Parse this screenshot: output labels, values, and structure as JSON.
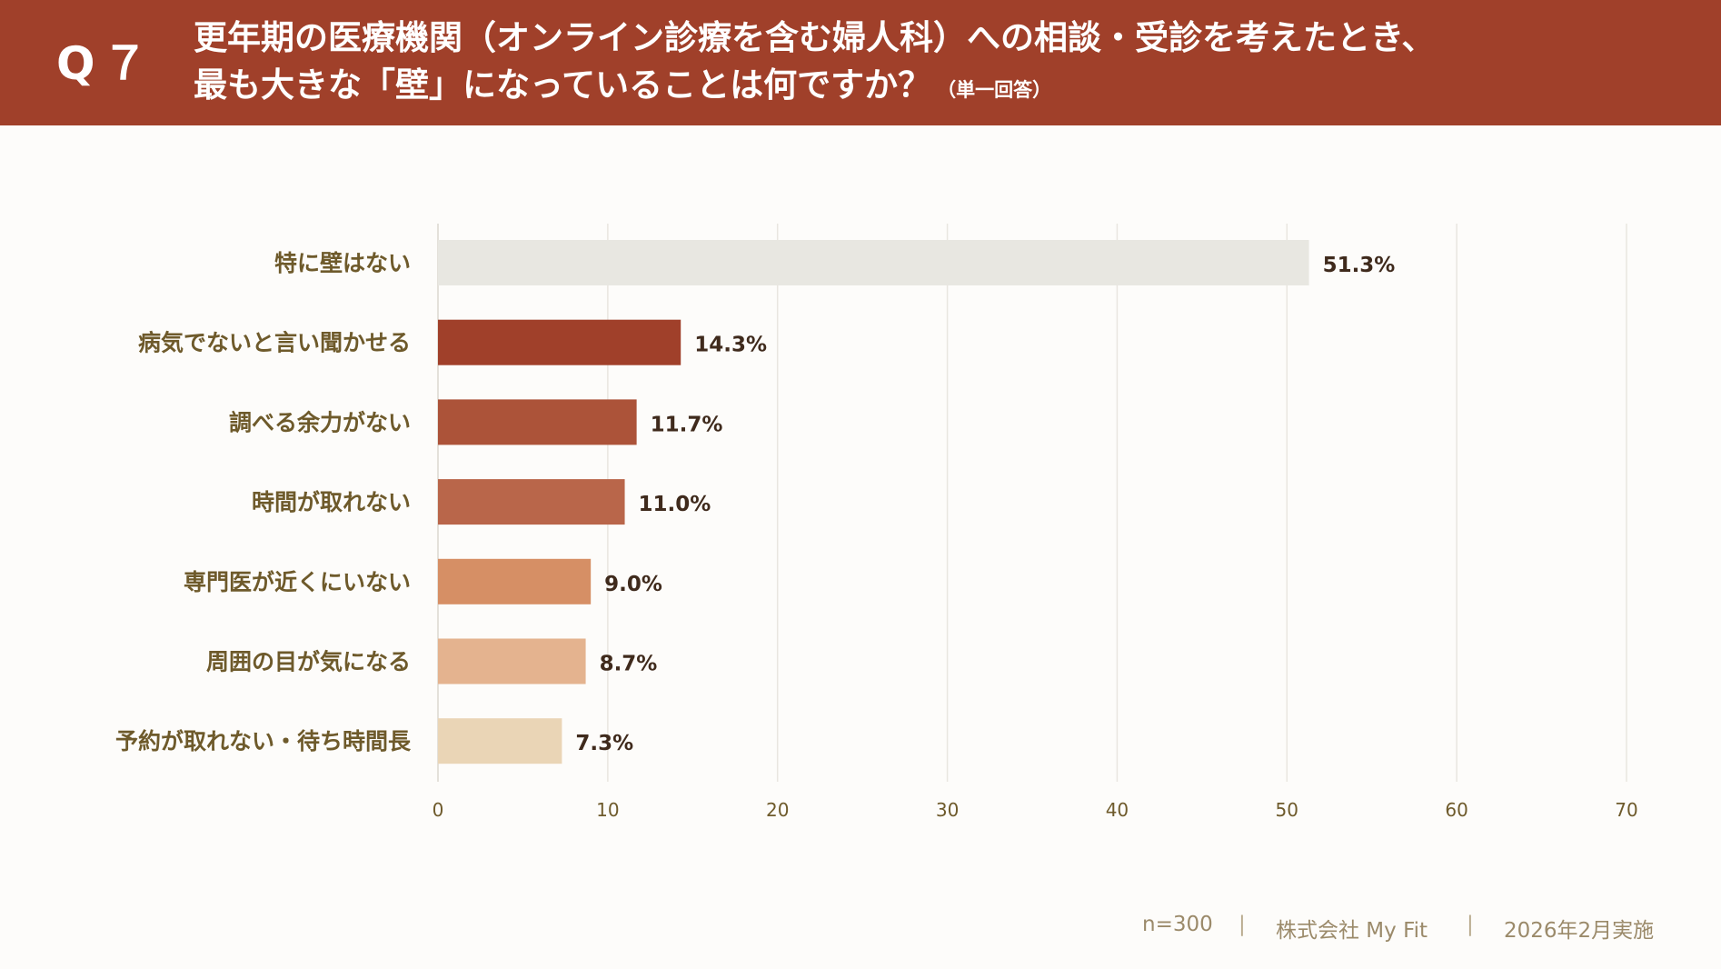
{
  "header": {
    "qnum": "Q７",
    "question_line1": "更年期の医療機関（オンライン診療を含む婦人科）への相談・受診を考えたとき、",
    "question_line2": "最も大きな「壁」になっていることは何ですか？",
    "question_note": "（単一回答）"
  },
  "chart_data": {
    "type": "bar",
    "orientation": "horizontal",
    "categories": [
      "特に壁はない",
      "病気でないと言い聞かせる",
      "調べる余力がない",
      "時間が取れない",
      "専門医が近くにいない",
      "周囲の目が気になる",
      "予約が取れない・待ち時間長"
    ],
    "values": [
      51.3,
      14.3,
      11.7,
      11.0,
      9.0,
      8.7,
      7.3
    ],
    "value_labels": [
      "51.3%",
      "14.3%",
      "11.7%",
      "11.0%",
      "9.0%",
      "8.7%",
      "7.3%"
    ],
    "bar_colors": [
      "#e8e7e1",
      "#a0402a",
      "#ac5339",
      "#b9664a",
      "#d68f65",
      "#e4b38f",
      "#ead5b6"
    ],
    "xlim": [
      0,
      70
    ],
    "xticks": [
      0,
      10,
      20,
      30,
      40,
      50,
      60,
      70
    ],
    "xtick_labels": [
      "0",
      "10",
      "20",
      "30",
      "40",
      "50",
      "60",
      "70"
    ],
    "grid": true,
    "title": "",
    "xlabel": "",
    "ylabel": ""
  },
  "footer": {
    "sample": "n=300",
    "company": "株式会社 My Fit",
    "date": "2026年2月実施",
    "separator": "|"
  },
  "colors": {
    "header_bg": "#a0402a",
    "label_text": "#6e5a2b",
    "value_text": "#3f2a1c",
    "grid": "#e9e6e0",
    "footer_text": "#9b8a6a"
  }
}
